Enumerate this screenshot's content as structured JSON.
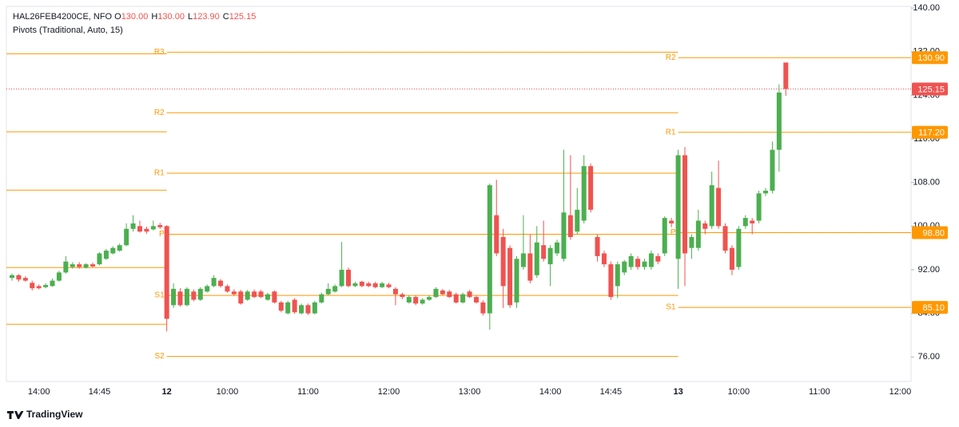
{
  "header": {
    "symbol": "HAL26FEB4200CE, NFO",
    "readout": [
      {
        "key": "O",
        "value": "130.00"
      },
      {
        "key": "H",
        "value": "130.00"
      },
      {
        "key": "L",
        "value": "123.90"
      },
      {
        "key": "C",
        "value": "125.15"
      }
    ],
    "indicator": "Pivots (Traditional, Auto, 15)"
  },
  "branding": "TradingView",
  "chart_data": {
    "type": "candlestick",
    "up_color": "#4caf50",
    "down_color": "#ef5350",
    "pivot_color": "#ff9800",
    "ylim": [
      71.5,
      140.3
    ],
    "yticks": [
      {
        "value": 76,
        "label": "76.00"
      },
      {
        "value": 84,
        "label": "84.00"
      },
      {
        "value": 92,
        "label": "92.00"
      },
      {
        "value": 100,
        "label": "100.00"
      },
      {
        "value": 108,
        "label": "108.00"
      },
      {
        "value": 116,
        "label": "116.00"
      },
      {
        "value": 124,
        "label": "124.00"
      },
      {
        "value": 132,
        "label": "132.00"
      },
      {
        "value": 140,
        "label": "140.00"
      }
    ],
    "categories": [
      null,
      null,
      null,
      null,
      "14:00",
      null,
      null,
      null,
      null,
      null,
      null,
      null,
      null,
      "14:45",
      null,
      null,
      null,
      null,
      null,
      null,
      null,
      null,
      null,
      "12",
      null,
      null,
      null,
      null,
      null,
      null,
      null,
      null,
      "10:00",
      null,
      null,
      null,
      null,
      null,
      null,
      null,
      null,
      null,
      null,
      null,
      "11:00",
      null,
      null,
      null,
      null,
      null,
      null,
      null,
      null,
      null,
      null,
      null,
      "12:00",
      null,
      null,
      null,
      null,
      null,
      null,
      null,
      null,
      null,
      null,
      null,
      "13:00",
      null,
      null,
      null,
      null,
      null,
      null,
      null,
      null,
      null,
      null,
      null,
      "14:00",
      null,
      null,
      null,
      null,
      null,
      null,
      null,
      null,
      "14:45",
      null,
      null,
      null,
      null,
      null,
      null,
      null,
      null,
      null,
      "13",
      null,
      null,
      null,
      null,
      null,
      null,
      null,
      null,
      "10:00",
      null,
      null,
      null,
      null,
      null,
      null,
      null,
      null,
      null,
      null,
      null,
      "11:00",
      null,
      null,
      null,
      null,
      null,
      null,
      null,
      null,
      null,
      null,
      null,
      "12:00"
    ],
    "open": [
      90.5,
      91.0,
      90.5,
      89.6,
      89.0,
      88.8,
      89.0,
      90.0,
      91.5,
      92.5,
      93.0,
      92.4,
      93.0,
      93.0,
      94.0,
      95.0,
      95.5,
      96.5,
      99.5,
      100.0,
      99.5,
      99.4,
      100.2,
      100.0,
      85.5,
      88.0,
      85.5,
      88.0,
      86.5,
      88.0,
      89.0,
      90.0,
      89.0,
      88.0,
      88.0,
      86.5,
      88.0,
      88.0,
      86.5,
      88.0,
      86.0,
      84.0,
      86.5,
      84.0,
      85.5,
      84.0,
      86.0,
      87.5,
      88.0,
      89.0,
      92.0,
      89.0,
      89.8,
      89.5,
      89.5,
      88.8,
      89.3,
      88.5,
      87.5,
      86.0,
      87.0,
      85.8,
      86.5,
      87.0,
      88.2,
      88.0,
      87.5,
      86.0,
      88.0,
      87.0,
      86.0,
      84.0,
      102.0,
      98.0,
      96.0,
      86.0,
      92.5,
      95.0,
      91.0,
      96.5,
      93.0,
      95.0,
      94.0,
      102.0,
      99.0,
      101.0,
      111.0,
      98.0,
      95.0,
      93.0,
      89.0,
      91.5,
      92.5,
      94.0,
      92.5,
      92.5,
      94.5,
      95.0,
      101.0,
      94.0,
      113.0,
      96.0,
      96.0,
      100.5,
      100.0,
      107.0,
      100.0,
      96.0,
      92.5,
      100.0,
      101.0,
      101.0,
      106.0,
      106.5,
      114.0,
      130.0,
      null,
      null,
      null,
      null,
      null,
      null,
      null,
      null,
      null,
      null,
      null,
      null,
      null,
      null,
      null,
      null,
      null
    ],
    "high": [
      91.3,
      91.2,
      90.8,
      90.0,
      89.3,
      89.5,
      90.4,
      91.8,
      94.5,
      93.4,
      93.4,
      93.2,
      93.3,
      95.2,
      95.8,
      96.3,
      96.8,
      100.5,
      102.0,
      101.0,
      99.9,
      101.0,
      100.6,
      100.2,
      89.5,
      88.6,
      88.8,
      88.4,
      88.8,
      89.3,
      91.0,
      90.3,
      89.3,
      88.4,
      88.3,
      88.3,
      88.4,
      88.3,
      87.8,
      88.2,
      86.3,
      86.3,
      86.8,
      85.8,
      85.8,
      86.3,
      87.8,
      89.5,
      89.3,
      97.1,
      92.4,
      89.8,
      90.0,
      89.8,
      89.8,
      89.8,
      89.6,
      88.8,
      87.8,
      87.3,
      87.3,
      86.8,
      87.3,
      88.8,
      88.5,
      88.3,
      87.8,
      87.8,
      88.3,
      87.3,
      86.4,
      107.8,
      108.5,
      99.5,
      96.5,
      94.5,
      102.0,
      98.5,
      100.0,
      101.0,
      96.5,
      97.5,
      114.0,
      113.0,
      107.0,
      113.0,
      111.5,
      98.5,
      95.5,
      93.5,
      93.5,
      93.8,
      95.0,
      94.5,
      94.0,
      95.5,
      95.0,
      101.8,
      101.5,
      114.0,
      114.5,
      98.5,
      103.0,
      101.0,
      110.0,
      112.0,
      100.5,
      96.5,
      100.0,
      102.0,
      101.5,
      106.5,
      107.0,
      115.5,
      126.0,
      130.0,
      null,
      null,
      null,
      null,
      null,
      null,
      null,
      null,
      null,
      null,
      null,
      null,
      null,
      null,
      null,
      null,
      null
    ],
    "low": [
      90.0,
      89.8,
      89.8,
      88.2,
      88.4,
      88.6,
      88.9,
      89.8,
      91.3,
      92.2,
      92.2,
      92.2,
      92.4,
      92.8,
      93.8,
      94.8,
      95.3,
      96.3,
      99.0,
      98.8,
      98.6,
      99.2,
      99.5,
      80.7,
      85.0,
      85.2,
      85.3,
      86.2,
      86.3,
      87.8,
      88.8,
      88.7,
      87.8,
      87.2,
      85.6,
      86.3,
      86.8,
      86.8,
      86.3,
      85.8,
      84.2,
      83.8,
      83.9,
      83.8,
      83.7,
      83.8,
      85.8,
      87.3,
      87.8,
      88.8,
      88.8,
      88.8,
      88.8,
      88.8,
      88.6,
      88.6,
      88.6,
      85.5,
      86.6,
      85.8,
      85.5,
      85.6,
      86.3,
      86.8,
      87.3,
      86.8,
      85.8,
      85.8,
      86.8,
      85.8,
      83.6,
      81.0,
      94.5,
      85.0,
      85.0,
      85.0,
      92.0,
      89.5,
      90.5,
      93.5,
      89.0,
      94.5,
      93.5,
      97.5,
      98.5,
      100.5,
      102.5,
      93.5,
      92.5,
      86.5,
      86.8,
      91.0,
      92.0,
      92.0,
      92.0,
      92.0,
      93.0,
      94.5,
      99.8,
      88.5,
      89.0,
      94.0,
      95.5,
      98.5,
      99.5,
      99.5,
      95.0,
      91.0,
      92.0,
      99.5,
      98.5,
      100.5,
      105.5,
      106.0,
      110.0,
      123.9,
      null,
      null,
      null,
      null,
      null,
      null,
      null,
      null,
      null,
      null,
      null,
      null,
      null,
      null,
      null,
      null,
      null
    ],
    "close": [
      91.0,
      90.2,
      90.0,
      88.6,
      88.6,
      89.2,
      90.0,
      91.5,
      93.5,
      93.0,
      92.5,
      93.0,
      92.6,
      95.0,
      95.5,
      96.0,
      96.5,
      99.5,
      100.5,
      99.0,
      99.0,
      100.0,
      99.8,
      83.0,
      88.5,
      85.5,
      88.5,
      86.5,
      88.5,
      89.0,
      90.5,
      89.0,
      88.0,
      87.5,
      85.8,
      88.0,
      87.0,
      87.0,
      87.5,
      86.0,
      84.5,
      86.0,
      84.2,
      85.5,
      84.0,
      86.0,
      87.5,
      88.5,
      89.0,
      92.0,
      89.0,
      89.5,
      89.0,
      89.0,
      88.8,
      89.5,
      88.8,
      87.5,
      87.0,
      87.0,
      85.8,
      86.5,
      87.0,
      88.5,
      87.5,
      87.0,
      86.0,
      87.5,
      87.0,
      86.0,
      84.0,
      107.5,
      95.0,
      89.0,
      85.5,
      94.0,
      95.0,
      90.0,
      97.0,
      94.0,
      96.0,
      97.0,
      102.5,
      98.0,
      103.0,
      111.0,
      103.0,
      94.5,
      93.0,
      87.0,
      93.0,
      93.5,
      94.5,
      92.5,
      93.5,
      95.0,
      93.5,
      101.5,
      100.5,
      113.0,
      95.0,
      98.0,
      101.0,
      99.5,
      107.5,
      100.0,
      95.5,
      92.0,
      99.5,
      101.5,
      100.5,
      106.0,
      106.5,
      114.0,
      124.5,
      125.15,
      null,
      null,
      null,
      null,
      null,
      null,
      null,
      null,
      null,
      null,
      null,
      null,
      null,
      null,
      null,
      null,
      null
    ],
    "pivots": [
      {
        "values": [
          131.6,
          117.3,
          106.6,
          92.4,
          82.0
        ]
      },
      {
        "names": [
          "R3",
          "R2",
          "R1",
          "P",
          "S1",
          "S2"
        ],
        "values": [
          131.9,
          120.8,
          109.7,
          98.5,
          87.3,
          76.1
        ]
      },
      {
        "names": [
          "R2",
          "R1",
          "P",
          "S1"
        ],
        "values": [
          130.9,
          117.2,
          98.8,
          85.1
        ],
        "value_labels": [
          "130.90",
          "117.20",
          "98.80",
          "85.10"
        ]
      }
    ]
  }
}
